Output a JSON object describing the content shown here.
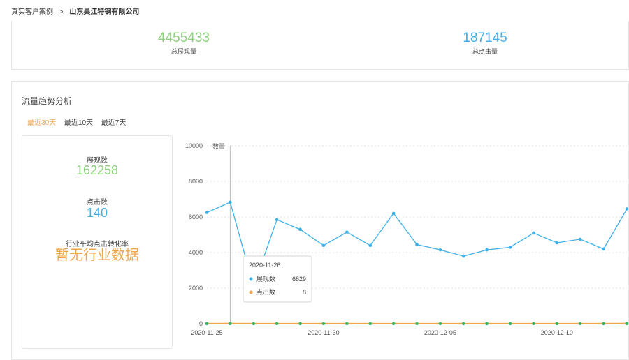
{
  "breadcrumb": {
    "parent": "真实客户案例",
    "separator": ">",
    "current": "山东昊江特钢有限公司"
  },
  "summary": {
    "impressions": {
      "value": "4455433",
      "label": "总展现量"
    },
    "clicks": {
      "value": "187145",
      "label": "总点击量"
    }
  },
  "trend": {
    "title": "流量趋势分析",
    "filters": [
      {
        "label": "最近30天",
        "active": true
      },
      {
        "label": "最近10天",
        "active": false
      },
      {
        "label": "最近7天",
        "active": false
      }
    ],
    "panel": {
      "impressions_label": "展现数",
      "impressions_value": "162258",
      "clicks_label": "点击数",
      "clicks_value": "140",
      "industry_label": "行业平均点击转化率",
      "industry_value": "暂无行业数据"
    }
  },
  "colors": {
    "impressions": "#3fb0ea",
    "clicks": "#f0a64b",
    "click_points": "#3cb563",
    "stat_green": "#8dd07b"
  },
  "chart_data": {
    "type": "line",
    "ylabel": "数量",
    "ylim": [
      0,
      10000
    ],
    "yticks": [
      0,
      2000,
      4000,
      6000,
      8000,
      10000
    ],
    "x": [
      "2020-11-25",
      "2020-11-26",
      "2020-11-27",
      "2020-11-28",
      "2020-11-29",
      "2020-11-30",
      "2020-12-01",
      "2020-12-02",
      "2020-12-03",
      "2020-12-04",
      "2020-12-05",
      "2020-12-06",
      "2020-12-07",
      "2020-12-08",
      "2020-12-09",
      "2020-12-10",
      "2020-12-11",
      "2020-12-12",
      "2020-12-13"
    ],
    "xtick_labels": [
      {
        "index": 0,
        "label": "2020-11-25"
      },
      {
        "index": 5,
        "label": "2020-11-30"
      },
      {
        "index": 10,
        "label": "2020-12-05"
      },
      {
        "index": 15,
        "label": "2020-12-10"
      }
    ],
    "series": [
      {
        "name": "展现数",
        "values": [
          6250,
          6829,
          2100,
          5850,
          5300,
          4400,
          5150,
          4400,
          6200,
          4450,
          4150,
          3800,
          4150,
          4300,
          5100,
          4550,
          4750,
          4200,
          6450
        ]
      },
      {
        "name": "点击数",
        "values": [
          5,
          8,
          4,
          6,
          5,
          4,
          6,
          3,
          7,
          5,
          4,
          3,
          4,
          5,
          6,
          4,
          5,
          4,
          9
        ]
      }
    ],
    "tooltip": {
      "date": "2020-11-26",
      "rows": [
        {
          "name": "展现数",
          "value": "6829"
        },
        {
          "name": "点击数",
          "value": "8"
        }
      ]
    }
  }
}
